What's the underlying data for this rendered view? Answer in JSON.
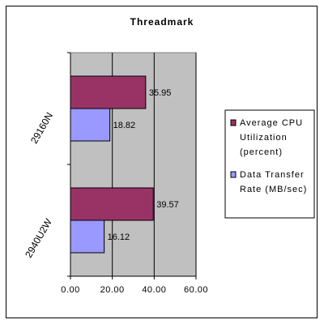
{
  "chart_data": {
    "type": "bar",
    "orientation": "horizontal",
    "title": "Threadmark",
    "categories": [
      "29160N",
      "2940U2W"
    ],
    "series": [
      {
        "name": "Average CPU Utilization (percent)",
        "color": "#993366",
        "values": [
          35.95,
          39.57
        ]
      },
      {
        "name": "Data Transfer Rate (MB/sec)",
        "color": "#9999ff",
        "values": [
          18.82,
          16.12
        ]
      }
    ],
    "xlim": [
      0,
      60
    ],
    "xticks": [
      "0.00",
      "20.00",
      "40.00",
      "60.00"
    ],
    "data_labels": [
      [
        "35.95",
        "39.57"
      ],
      [
        "18.82",
        "16.12"
      ]
    ],
    "legend": {
      "placement": "right",
      "entries": [
        {
          "lines": [
            "Average CPU",
            "Utilization",
            "(percent)"
          ]
        },
        {
          "lines": [
            "Data Transfer",
            "Rate (MB/sec)"
          ]
        }
      ]
    },
    "plot_background": "#c0c0c0",
    "grid": true
  }
}
